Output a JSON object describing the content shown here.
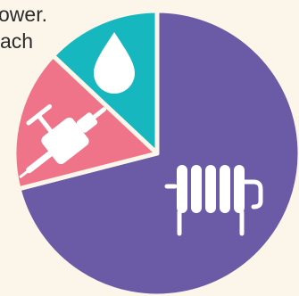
{
  "caption": {
    "line1": "ower.",
    "line2": "ach"
  },
  "chart_data": {
    "type": "pie",
    "title": "",
    "start_angle_deg": 0,
    "direction": "clockwise",
    "slices": [
      {
        "label": "",
        "icon": "radiator-icon",
        "value": 71,
        "color": "#6b5aa6"
      },
      {
        "label": "",
        "icon": "faucet-icon",
        "value": 16,
        "color": "#ef7489"
      },
      {
        "label": "",
        "icon": "water-drop-icon",
        "value": 13,
        "color": "#17b7bf"
      }
    ],
    "separator_color": "#fcf6ea",
    "icon_color": "#ffffff"
  }
}
